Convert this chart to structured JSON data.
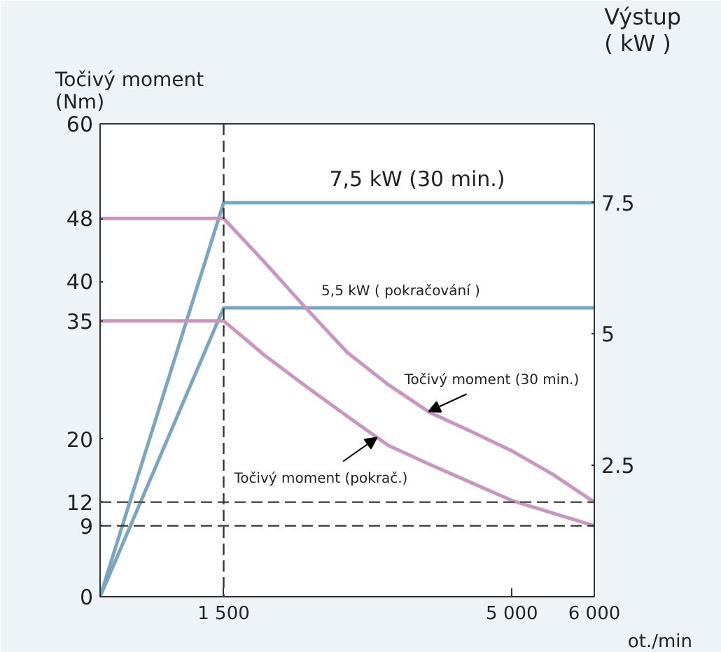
{
  "chart_data": {
    "type": "line",
    "ylabel": "Točivý moment\n(Nm)",
    "y2label": "Výstup\n( kW )",
    "xlabel": "ot./min",
    "xlim": [
      0,
      6000
    ],
    "xticks": [
      {
        "value": 0,
        "label": null
      },
      {
        "value": 1500,
        "label": "1 500"
      },
      {
        "value": 5000,
        "label": "5 000"
      },
      {
        "value": 6000,
        "label": "6 000"
      }
    ],
    "ylim": [
      0,
      60
    ],
    "yticks": [
      0,
      9,
      12,
      20,
      35,
      40,
      48,
      60
    ],
    "y2lim": [
      0,
      9
    ],
    "y2ticks": [
      2.5,
      5,
      7.5
    ],
    "grid": false,
    "marker": "none",
    "line_style": "solid",
    "series": [
      {
        "color": "#7aa7bf",
        "axis": "y2",
        "x": [
          0,
          1500,
          6000
        ],
        "values": [
          0,
          7.5,
          7.5
        ]
      },
      {
        "color": "#7aa7bf",
        "axis": "y2",
        "x": [
          0,
          1500,
          6000
        ],
        "values": [
          0,
          5.5,
          5.5
        ]
      },
      {
        "color": "#c996bf",
        "x": [
          0,
          1500,
          2000,
          2500,
          3000,
          3500,
          4000,
          4500,
          5000,
          5500,
          6000
        ],
        "values": [
          48,
          48,
          42.4,
          36.6,
          31,
          26.9,
          23.4,
          21,
          18.5,
          15.5,
          12
        ]
      },
      {
        "color": "#c996bf",
        "x": [
          0,
          1500,
          2000,
          2500,
          3000,
          3500,
          4000,
          4500,
          5000,
          5500,
          6000
        ],
        "values": [
          35,
          35,
          30.6,
          26.7,
          22.9,
          19.2,
          16.8,
          14.5,
          12.2,
          10.6,
          9
        ]
      }
    ],
    "ref_lines": [
      {
        "axis": "y",
        "value": 12,
        "color": "#555555",
        "line_style": "dashed"
      },
      {
        "axis": "y",
        "value": 9,
        "color": "#333333",
        "line_style": "dashed"
      },
      {
        "axis": "x",
        "value": 1500,
        "color": "#333333",
        "line_style": "dashed"
      }
    ],
    "annotations": [
      {
        "text": "7,5 kW (30 min.)",
        "x": 3850,
        "y": 50
      },
      {
        "text": "5,5 kW ( pokračování )",
        "x": 3650,
        "y": 36.67
      },
      {
        "text": "Točivý moment (30 min.)",
        "x": 3990,
        "y": 23.5
      },
      {
        "text": "Točivý moment (pokrač.)",
        "x": 3360,
        "y": 20.2
      }
    ]
  }
}
